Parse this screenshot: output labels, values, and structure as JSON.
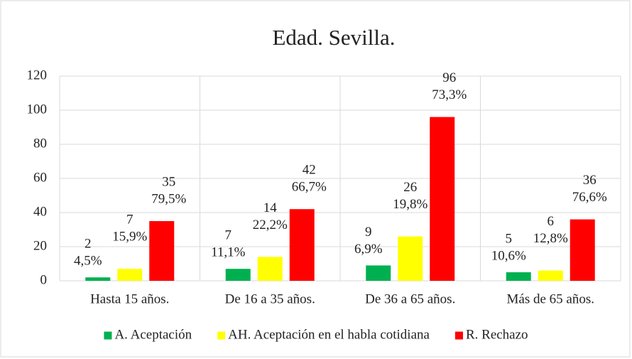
{
  "chart_data": {
    "type": "bar",
    "title": "Edad. Sevilla.",
    "categories": [
      "Hasta 15 años.",
      "De 16 a 35 años.",
      "De 36 a 65 años.",
      "Más de 65 años."
    ],
    "series": [
      {
        "name": "A. Aceptación",
        "color": "#00b050",
        "values": [
          2,
          7,
          9,
          5
        ],
        "percents": [
          4.5,
          11.1,
          6.9,
          10.6
        ],
        "percent_labels": [
          "4,5%",
          "11,1%",
          "6,9%",
          "10,6%"
        ]
      },
      {
        "name": "AH. Aceptación en el habla cotidiana",
        "color": "#ffff00",
        "values": [
          7,
          14,
          26,
          6
        ],
        "percents": [
          15.9,
          22.2,
          19.8,
          12.8
        ],
        "percent_labels": [
          "15,9%",
          "22,2%",
          "19,8%",
          "12,8%"
        ]
      },
      {
        "name": "R. Rechazo",
        "color": "#ff0000",
        "values": [
          35,
          42,
          96,
          36
        ],
        "percents": [
          79.5,
          66.7,
          73.3,
          76.6
        ],
        "percent_labels": [
          "79,5%",
          "66,7%",
          "73,3%",
          "76,6%"
        ]
      }
    ],
    "ylim": [
      0,
      120
    ],
    "yticks": [
      0,
      20,
      40,
      60,
      80,
      100,
      120
    ],
    "grid": true,
    "legend": "bottom"
  }
}
